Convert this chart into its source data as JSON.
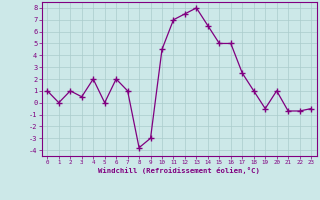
{
  "x": [
    0,
    1,
    2,
    3,
    4,
    5,
    6,
    7,
    8,
    9,
    10,
    11,
    12,
    13,
    14,
    15,
    16,
    17,
    18,
    19,
    20,
    21,
    22,
    23
  ],
  "y": [
    1,
    0,
    1,
    0.5,
    2,
    0,
    2,
    1,
    -3.8,
    -3,
    4.5,
    7,
    7.5,
    8,
    6.5,
    5,
    5,
    2.5,
    1,
    -0.5,
    1,
    -0.7,
    -0.7,
    -0.5
  ],
  "line_color": "#800080",
  "marker_color": "#800080",
  "bg_color": "#cce8e8",
  "grid_color": "#aacccc",
  "xlabel": "Windchill (Refroidissement éolien,°C)",
  "xlabel_color": "#800080",
  "tick_color": "#800080",
  "spine_color": "#800080",
  "xlim": [
    -0.5,
    23.5
  ],
  "ylim": [
    -4.5,
    8.5
  ],
  "yticks": [
    -4,
    -3,
    -2,
    -1,
    0,
    1,
    2,
    3,
    4,
    5,
    6,
    7,
    8
  ],
  "xticks": [
    0,
    1,
    2,
    3,
    4,
    5,
    6,
    7,
    8,
    9,
    10,
    11,
    12,
    13,
    14,
    15,
    16,
    17,
    18,
    19,
    20,
    21,
    22,
    23
  ]
}
